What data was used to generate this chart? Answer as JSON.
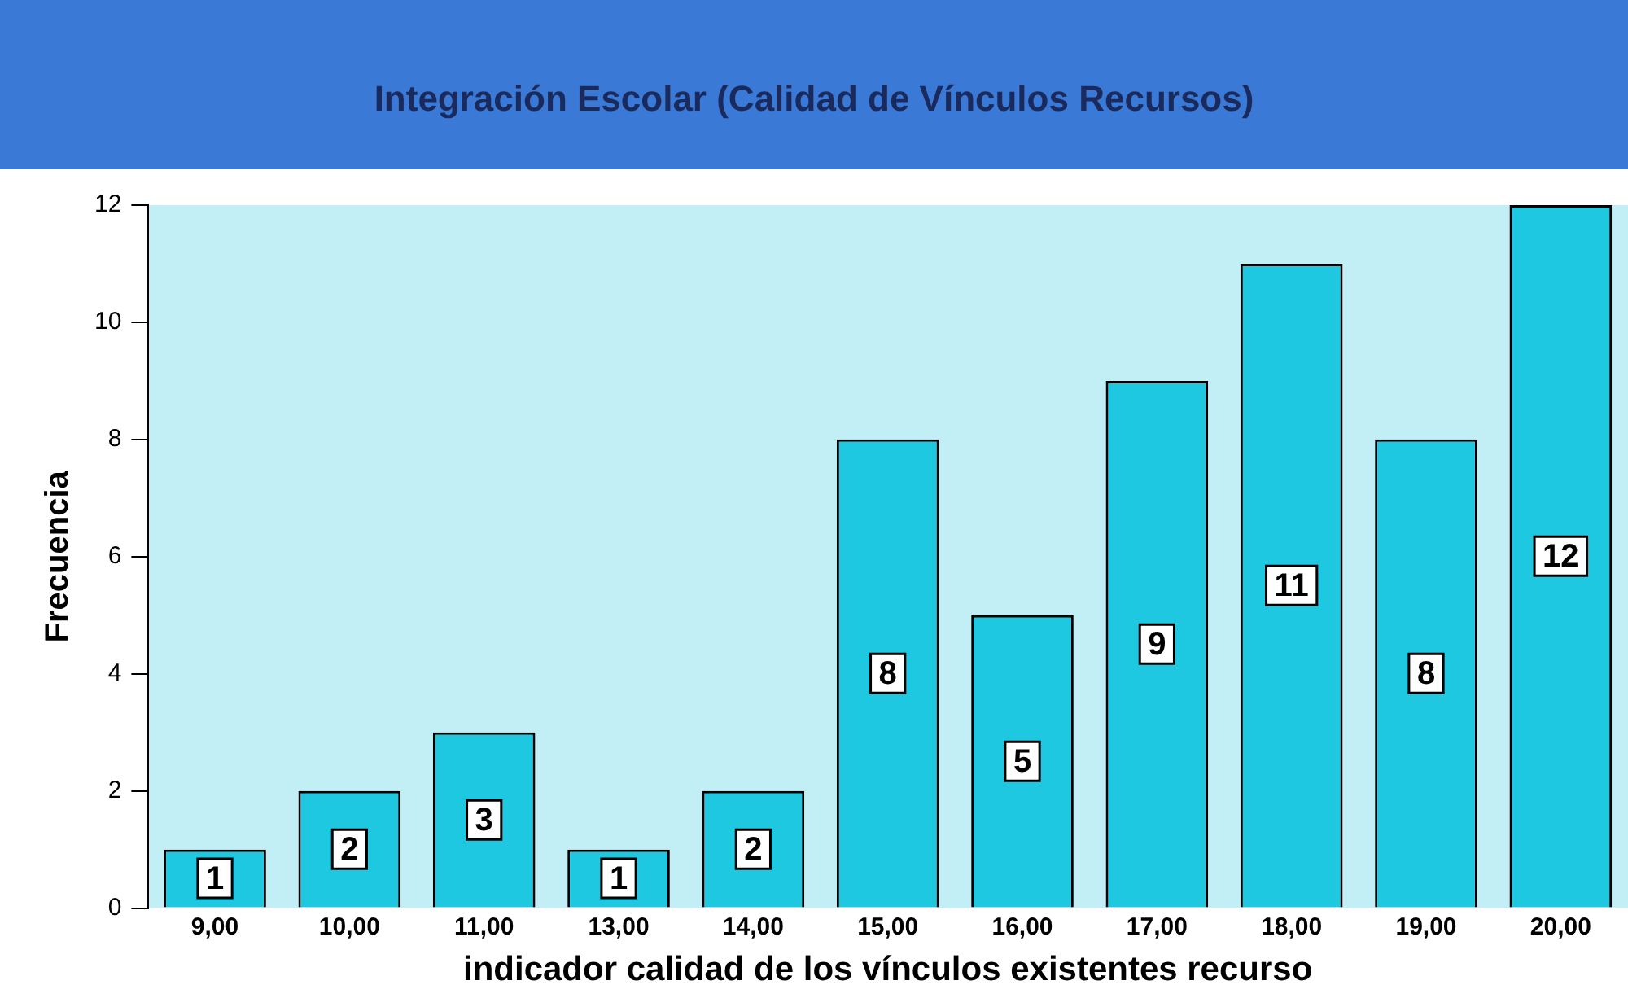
{
  "chart_data": {
    "type": "bar",
    "title": "Integración Escolar (Calidad de Vínculos Recursos)",
    "xlabel": "indicador calidad de los vínculos existentes recurso",
    "ylabel": "Frecuencia",
    "categories": [
      "9,00",
      "10,00",
      "11,00",
      "13,00",
      "14,00",
      "15,00",
      "16,00",
      "17,00",
      "18,00",
      "19,00",
      "20,00"
    ],
    "values": [
      1,
      2,
      3,
      1,
      2,
      8,
      5,
      9,
      11,
      8,
      12
    ],
    "color": "#1ec8e0",
    "ylim": [
      0,
      12
    ],
    "yticks": [
      0,
      2,
      4,
      6,
      8,
      10,
      12
    ],
    "grid": false,
    "legend": false,
    "data_labels": true
  }
}
